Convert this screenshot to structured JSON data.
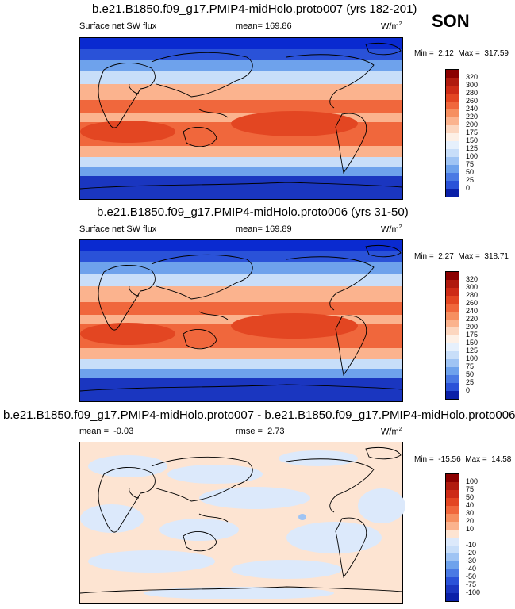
{
  "season": "SON",
  "colors": {
    "deep_blue": "#0a2ad0",
    "light_blue": "#cfe2fb",
    "peach": "#fbdcc6",
    "red": "#e8482a",
    "dark_red": "#9a0e0e"
  },
  "chart_data": [
    {
      "type": "heatmap",
      "title": "b.e21.B1850.f09_g17.PMIP4-midHolo.proto007 (yrs 182-201)",
      "variable": "Surface net SW flux",
      "stat_label": "mean=",
      "stat_value": "169.86",
      "units": "W/m",
      "units_exp": "2",
      "min_label": "Min =",
      "min": "2.12",
      "max_label": "Max =",
      "max": "317.59",
      "colorbar_labels": [
        "320",
        "300",
        "280",
        "260",
        "240",
        "220",
        "200",
        "175",
        "150",
        "125",
        "100",
        "75",
        "50",
        "25",
        "0"
      ],
      "colorbar_colors": [
        "#8b0000",
        "#b01a0e",
        "#cd2b16",
        "#e34622",
        "#f0673c",
        "#f68f60",
        "#fbb38e",
        "#fcd6bf",
        "#fdf0e6",
        "#e6f0fc",
        "#c8def9",
        "#9fc4f4",
        "#6ea2ec",
        "#4a7ae4",
        "#2a52d8",
        "#0a20a8"
      ],
      "xlim": [
        0,
        360
      ],
      "ylim": [
        -90,
        90
      ]
    },
    {
      "type": "heatmap",
      "title": "b.e21.B1850.f09_g17.PMIP4-midHolo.proto006 (yrs 31-50)",
      "variable": "Surface net SW flux",
      "stat_label": "mean=",
      "stat_value": "169.89",
      "units": "W/m",
      "units_exp": "2",
      "min_label": "Min =",
      "min": "2.27",
      "max_label": "Max =",
      "max": "318.71",
      "colorbar_labels": [
        "320",
        "300",
        "280",
        "260",
        "240",
        "220",
        "200",
        "175",
        "150",
        "125",
        "100",
        "75",
        "50",
        "25",
        "0"
      ],
      "colorbar_colors": [
        "#8b0000",
        "#b01a0e",
        "#cd2b16",
        "#e34622",
        "#f0673c",
        "#f68f60",
        "#fbb38e",
        "#fcd6bf",
        "#fdf0e6",
        "#e6f0fc",
        "#c8def9",
        "#9fc4f4",
        "#6ea2ec",
        "#4a7ae4",
        "#2a52d8",
        "#0a20a8"
      ],
      "xlim": [
        0,
        360
      ],
      "ylim": [
        -90,
        90
      ]
    },
    {
      "type": "heatmap",
      "title": "b.e21.B1850.f09_g17.PMIP4-midHolo.proto007 - b.e21.B1850.f09_g17.PMIP4-midHolo.proto006",
      "stat_label": "mean =",
      "stat_value": "-0.03",
      "rmse_label": "rmse =",
      "rmse_value": "2.73",
      "units": "W/m",
      "units_exp": "2",
      "min_label": "Min =",
      "min": "-15.56",
      "max_label": "Max =",
      "max": "14.58",
      "colorbar_labels": [
        "100",
        "75",
        "50",
        "40",
        "30",
        "20",
        "10",
        "",
        "-10",
        "-20",
        "-30",
        "-40",
        "-50",
        "-75",
        "-100"
      ],
      "colorbar_colors": [
        "#8b0000",
        "#b01a0e",
        "#cd2b16",
        "#e34622",
        "#f0673c",
        "#f68f60",
        "#fbb38e",
        "#fde4d2",
        "#dce9fb",
        "#c8def9",
        "#9fc4f4",
        "#6ea2ec",
        "#4a7ae4",
        "#2a52d8",
        "#1a36c0",
        "#0a20a8"
      ],
      "xlim": [
        0,
        360
      ],
      "ylim": [
        -90,
        90
      ]
    }
  ]
}
